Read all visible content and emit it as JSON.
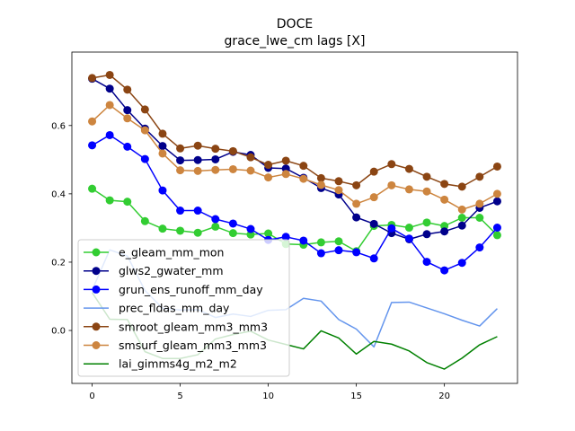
{
  "chart_data": {
    "type": "line",
    "title": "DOCE",
    "subtitle": "grace_lwe_cm lags [X]",
    "xlabel": "",
    "ylabel": "",
    "xlim": [
      -1.15,
      24.15
    ],
    "ylim": [
      -0.155,
      0.815
    ],
    "xticks": [
      0,
      5,
      10,
      15,
      20
    ],
    "yticks": [
      0.0,
      0.2,
      0.4,
      0.6
    ],
    "ytick_labels": [
      "0.0",
      "0.2",
      "0.4",
      "0.6"
    ],
    "grid": false,
    "legend_position": "lower-left",
    "x": [
      0,
      1,
      2,
      3,
      4,
      5,
      6,
      7,
      8,
      9,
      10,
      11,
      12,
      13,
      14,
      15,
      16,
      17,
      18,
      19,
      20,
      21,
      22,
      23
    ],
    "series": [
      {
        "name": "e_gleam_mm_mon",
        "color": "#32cd32",
        "markers": true,
        "values": [
          0.415,
          0.381,
          0.377,
          0.32,
          0.298,
          0.292,
          0.286,
          0.304,
          0.285,
          0.281,
          0.284,
          0.253,
          0.251,
          0.258,
          0.261,
          0.232,
          0.306,
          0.309,
          0.301,
          0.316,
          0.306,
          0.33,
          0.33,
          0.279
        ]
      },
      {
        "name": "glws2_gwater_mm",
        "color": "#00008b",
        "markers": true,
        "values": [
          0.737,
          0.708,
          0.645,
          0.591,
          0.54,
          0.498,
          0.499,
          0.501,
          0.523,
          0.514,
          0.476,
          0.474,
          0.447,
          0.417,
          0.398,
          0.331,
          0.312,
          0.285,
          0.267,
          0.282,
          0.29,
          0.307,
          0.359,
          0.378
        ]
      },
      {
        "name": "grun_ens_runoff_mm_day",
        "color": "#0000ff",
        "markers": true,
        "values": [
          0.542,
          0.572,
          0.538,
          0.502,
          0.41,
          0.351,
          0.351,
          0.326,
          0.313,
          0.297,
          0.265,
          0.274,
          0.263,
          0.226,
          0.235,
          0.229,
          0.211,
          0.299,
          0.269,
          0.201,
          0.176,
          0.198,
          0.243,
          0.301
        ]
      },
      {
        "name": "prec_fldas_mm_day",
        "color": "#6495ed",
        "markers": false,
        "values": [
          0.118,
          0.236,
          0.218,
          0.117,
          0.065,
          0.06,
          0.061,
          0.038,
          0.048,
          0.041,
          0.059,
          0.061,
          0.094,
          0.086,
          0.032,
          0.004,
          -0.048,
          0.082,
          0.083,
          0.066,
          0.049,
          0.03,
          0.013,
          0.064
        ]
      },
      {
        "name": "smroot_gleam_mm3_mm3",
        "color": "#8b4513",
        "markers": true,
        "values": [
          0.739,
          0.748,
          0.705,
          0.647,
          0.576,
          0.533,
          0.541,
          0.532,
          0.525,
          0.507,
          0.485,
          0.497,
          0.482,
          0.446,
          0.437,
          0.425,
          0.465,
          0.487,
          0.473,
          0.45,
          0.429,
          0.421,
          0.45,
          0.48
        ]
      },
      {
        "name": "smsurf_gleam_mm3_mm3",
        "color": "#cd853f",
        "markers": true,
        "values": [
          0.612,
          0.66,
          0.621,
          0.586,
          0.518,
          0.469,
          0.467,
          0.47,
          0.472,
          0.468,
          0.448,
          0.458,
          0.444,
          0.426,
          0.411,
          0.371,
          0.39,
          0.425,
          0.413,
          0.407,
          0.383,
          0.354,
          0.371,
          0.4
        ]
      },
      {
        "name": "lai_gimms4g_m2_m2",
        "color": "#008000",
        "markers": false,
        "values": [
          0.111,
          0.033,
          0.032,
          -0.062,
          -0.082,
          -0.082,
          -0.071,
          -0.025,
          -0.012,
          -0.002,
          -0.028,
          -0.041,
          -0.054,
          -0.001,
          -0.022,
          -0.069,
          -0.032,
          -0.04,
          -0.06,
          -0.094,
          -0.113,
          -0.081,
          -0.042,
          -0.018
        ]
      }
    ]
  }
}
